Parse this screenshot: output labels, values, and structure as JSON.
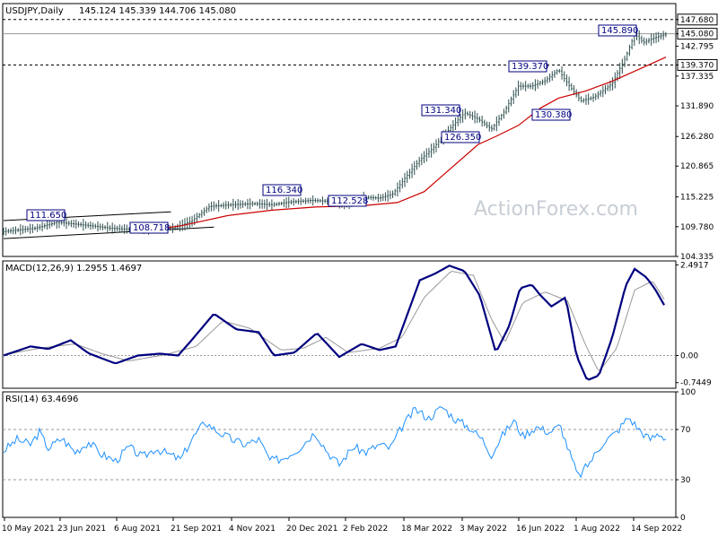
{
  "chart_data": [
    {
      "type": "candlestick",
      "title": "USDJPY,Daily",
      "ohlc_readout": "145.124 145.339 144.706 145.080",
      "watermark": "ActionForex.com",
      "ylim": [
        104.335,
        150.6
      ],
      "y_ticks": [
        "147.680",
        "145.080",
        "142.795",
        "139.370",
        "137.335",
        "131.890",
        "126.280",
        "120.865",
        "115.225",
        "109.780",
        "104.335"
      ],
      "horizontal_levels": [
        {
          "value": 147.68,
          "label": "147.680",
          "style": "dashed"
        },
        {
          "value": 145.08,
          "label": "145.080",
          "style": "solid"
        },
        {
          "value": 139.37,
          "label": "139.370",
          "style": "dashed"
        }
      ],
      "annotations": [
        {
          "label": "111.650",
          "value": 111.65
        },
        {
          "label": "108.718",
          "value": 108.718
        },
        {
          "label": "116.340",
          "value": 116.34
        },
        {
          "label": "112.528",
          "value": 112.528
        },
        {
          "label": "131.340",
          "value": 131.34
        },
        {
          "label": "126.350",
          "value": 126.35
        },
        {
          "label": "139.370",
          "value": 139.37
        },
        {
          "label": "130.380",
          "value": 130.38
        },
        {
          "label": "145.890",
          "value": 145.89
        }
      ],
      "x_labels": [
        "10 May 2021",
        "23 Jun 2021",
        "6 Aug 2021",
        "21 Sep 2021",
        "4 Nov 2021",
        "20 Dec 2021",
        "2 Feb 2022",
        "18 Mar 2022",
        "3 May 2022",
        "16 Jun 2022",
        "1 Aug 2022",
        "14 Sep 2022"
      ],
      "price_path": [
        [
          0,
          108.9
        ],
        [
          35,
          109.5
        ],
        [
          60,
          110.6
        ],
        [
          95,
          110.0
        ],
        [
          120,
          109.5
        ],
        [
          150,
          109.2
        ],
        [
          175,
          109.6
        ],
        [
          190,
          109.5
        ],
        [
          210,
          110.8
        ],
        [
          230,
          113.5
        ],
        [
          255,
          113.8
        ],
        [
          280,
          114.0
        ],
        [
          300,
          113.8
        ],
        [
          320,
          114.3
        ],
        [
          345,
          114.6
        ],
        [
          365,
          114.4
        ],
        [
          380,
          113.8
        ],
        [
          400,
          115.2
        ],
        [
          420,
          115.0
        ],
        [
          435,
          115.8
        ],
        [
          450,
          119.0
        ],
        [
          465,
          122.0
        ],
        [
          480,
          124.2
        ],
        [
          500,
          128.0
        ],
        [
          515,
          130.6
        ],
        [
          530,
          129.5
        ],
        [
          545,
          127.6
        ],
        [
          560,
          131.0
        ],
        [
          575,
          135.5
        ],
        [
          590,
          135.5
        ],
        [
          605,
          136.5
        ],
        [
          620,
          138.5
        ],
        [
          630,
          136.0
        ],
        [
          645,
          132.8
        ],
        [
          660,
          133.5
        ],
        [
          680,
          136.0
        ],
        [
          695,
          140.8
        ],
        [
          705,
          145.0
        ],
        [
          715,
          143.5
        ],
        [
          725,
          144.2
        ],
        [
          740,
          145.0
        ]
      ],
      "ma": {
        "color": "#cc0000",
        "path": [
          [
            150,
            108.8
          ],
          [
            200,
            110.0
          ],
          [
            250,
            111.8
          ],
          [
            300,
            112.8
          ],
          [
            350,
            113.4
          ],
          [
            400,
            113.6
          ],
          [
            440,
            114.2
          ],
          [
            470,
            116.2
          ],
          [
            500,
            120.5
          ],
          [
            530,
            124.8
          ],
          [
            550,
            126.3
          ],
          [
            575,
            128.3
          ],
          [
            600,
            131.5
          ],
          [
            620,
            133.3
          ],
          [
            650,
            134.6
          ],
          [
            680,
            136.4
          ],
          [
            710,
            138.6
          ],
          [
            740,
            140.8
          ]
        ]
      },
      "trend_lines": [
        {
          "from": [
            0,
            110.9
          ],
          "to": [
            187,
            112.5
          ]
        },
        {
          "from": [
            0,
            107.6
          ],
          "to": [
            235,
            109.7
          ]
        }
      ]
    },
    {
      "type": "line",
      "title": "MACD(12,26,9) 1.2955 1.4697",
      "ylim": [
        -0.9,
        2.6
      ],
      "y_ticks": [
        "2.4917",
        "0.00",
        "-0.7449"
      ],
      "series": [
        {
          "name": "MACD",
          "color": "#00007f",
          "values": [
            [
              0,
              0.0
            ],
            [
              30,
              0.25
            ],
            [
              50,
              0.18
            ],
            [
              75,
              0.42
            ],
            [
              95,
              0.06
            ],
            [
              125,
              -0.22
            ],
            [
              150,
              0.0
            ],
            [
              175,
              0.05
            ],
            [
              195,
              0.0
            ],
            [
              210,
              0.42
            ],
            [
              235,
              1.15
            ],
            [
              260,
              0.72
            ],
            [
              285,
              0.64
            ],
            [
              302,
              0.0
            ],
            [
              325,
              0.08
            ],
            [
              350,
              0.62
            ],
            [
              375,
              -0.04
            ],
            [
              400,
              0.32
            ],
            [
              420,
              0.15
            ],
            [
              438,
              0.25
            ],
            [
              465,
              2.07
            ],
            [
              482,
              2.25
            ],
            [
              498,
              2.47
            ],
            [
              515,
              2.32
            ],
            [
              532,
              1.65
            ],
            [
              550,
              0.08
            ],
            [
              565,
              0.82
            ],
            [
              577,
              1.85
            ],
            [
              590,
              1.95
            ],
            [
              600,
              1.65
            ],
            [
              612,
              1.35
            ],
            [
              628,
              1.6
            ],
            [
              640,
              0.0
            ],
            [
              652,
              -0.68
            ],
            [
              665,
              -0.55
            ],
            [
              680,
              0.5
            ],
            [
              695,
              1.92
            ],
            [
              705,
              2.38
            ],
            [
              718,
              2.15
            ],
            [
              728,
              1.82
            ],
            [
              740,
              1.3
            ]
          ]
        },
        {
          "name": "Signal",
          "color": "#999999",
          "values": [
            [
              0,
              0.02
            ],
            [
              40,
              0.2
            ],
            [
              80,
              0.32
            ],
            [
              110,
              0.05
            ],
            [
              140,
              -0.15
            ],
            [
              180,
              0.02
            ],
            [
              215,
              0.25
            ],
            [
              245,
              0.95
            ],
            [
              275,
              0.75
            ],
            [
              310,
              0.15
            ],
            [
              335,
              0.2
            ],
            [
              360,
              0.5
            ],
            [
              385,
              0.08
            ],
            [
              420,
              0.2
            ],
            [
              445,
              0.5
            ],
            [
              470,
              1.6
            ],
            [
              500,
              2.32
            ],
            [
              525,
              2.2
            ],
            [
              545,
              1.0
            ],
            [
              560,
              0.35
            ],
            [
              580,
              1.45
            ],
            [
              605,
              1.75
            ],
            [
              630,
              1.5
            ],
            [
              650,
              0.3
            ],
            [
              665,
              -0.45
            ],
            [
              685,
              0.2
            ],
            [
              705,
              1.8
            ],
            [
              725,
              2.05
            ],
            [
              740,
              1.47
            ]
          ]
        }
      ]
    },
    {
      "type": "line",
      "title": "RSI(14) 63.4696",
      "ylim": [
        0,
        100
      ],
      "y_ticks": [
        "100",
        "70",
        "30",
        "0"
      ],
      "levels": [
        70,
        30
      ],
      "series": [
        {
          "name": "RSI",
          "color": "#1e90ff",
          "values": [
            [
              0,
              53
            ],
            [
              15,
              62
            ],
            [
              30,
              58
            ],
            [
              40,
              68
            ],
            [
              50,
              55
            ],
            [
              65,
              63
            ],
            [
              80,
              52
            ],
            [
              95,
              60
            ],
            [
              110,
              50
            ],
            [
              125,
              45
            ],
            [
              140,
              56
            ],
            [
              155,
              48
            ],
            [
              170,
              55
            ],
            [
              185,
              50
            ],
            [
              198,
              46
            ],
            [
              210,
              62
            ],
            [
              225,
              76
            ],
            [
              240,
              68
            ],
            [
              255,
              62
            ],
            [
              270,
              58
            ],
            [
              285,
              62
            ],
            [
              298,
              45
            ],
            [
              312,
              47
            ],
            [
              330,
              55
            ],
            [
              348,
              68
            ],
            [
              362,
              52
            ],
            [
              375,
              42
            ],
            [
              390,
              56
            ],
            [
              405,
              52
            ],
            [
              420,
              58
            ],
            [
              432,
              55
            ],
            [
              445,
              72
            ],
            [
              460,
              86
            ],
            [
              475,
              79
            ],
            [
              490,
              88
            ],
            [
              505,
              78
            ],
            [
              520,
              72
            ],
            [
              535,
              62
            ],
            [
              545,
              50
            ],
            [
              558,
              66
            ],
            [
              570,
              77
            ],
            [
              580,
              65
            ],
            [
              595,
              72
            ],
            [
              610,
              68
            ],
            [
              622,
              73
            ],
            [
              632,
              52
            ],
            [
              642,
              32
            ],
            [
              655,
              44
            ],
            [
              670,
              60
            ],
            [
              685,
              68
            ],
            [
              698,
              80
            ],
            [
              710,
              70
            ],
            [
              722,
              62
            ],
            [
              732,
              67
            ],
            [
              740,
              63
            ]
          ]
        }
      ]
    }
  ]
}
